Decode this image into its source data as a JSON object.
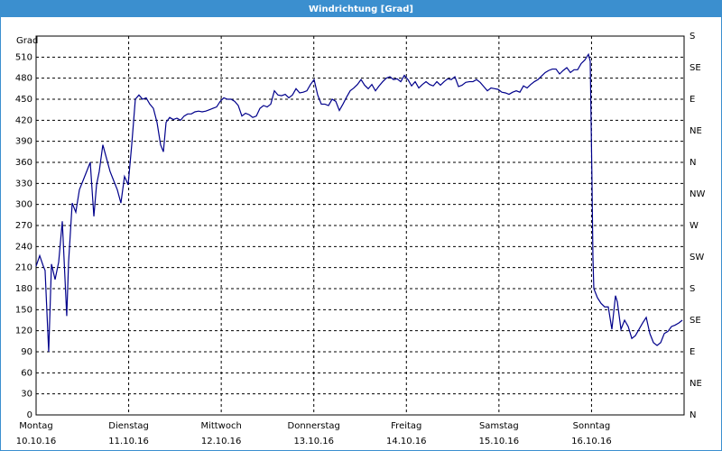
{
  "chart_data": {
    "type": "line",
    "title": "Windrichtung [Grad]",
    "ylabel": "Grad",
    "x": [
      0,
      0.039,
      0.078,
      0.097,
      0.136,
      0.166,
      0.205,
      0.244,
      0.283,
      0.331,
      0.351,
      0.39,
      0.429,
      0.468,
      0.507,
      0.546,
      0.585,
      0.624,
      0.653,
      0.682,
      0.721,
      0.76,
      0.799,
      0.838,
      0.877,
      0.916,
      0.955,
      0.994,
      1.033,
      1.072,
      1.111,
      1.15,
      1.189,
      1.228,
      1.267,
      1.306,
      1.345,
      1.375,
      1.404,
      1.443,
      1.482,
      1.521,
      1.56,
      1.599,
      1.638,
      1.677,
      1.716,
      1.755,
      1.794,
      1.833,
      1.872,
      1.911,
      1.95,
      1.989,
      2.028,
      2.067,
      2.106,
      2.145,
      2.184,
      2.223,
      2.262,
      2.301,
      2.34,
      2.379,
      2.418,
      2.457,
      2.496,
      2.535,
      2.574,
      2.613,
      2.652,
      2.691,
      2.73,
      2.769,
      2.808,
      2.847,
      2.886,
      2.925,
      2.964,
      3.003,
      3.042,
      3.081,
      3.12,
      3.159,
      3.198,
      3.237,
      3.276,
      3.315,
      3.354,
      3.393,
      3.432,
      3.471,
      3.51,
      3.549,
      3.588,
      3.627,
      3.666,
      3.705,
      3.744,
      3.783,
      3.822,
      3.861,
      3.9,
      3.939,
      3.978,
      4.017,
      4.056,
      4.095,
      4.134,
      4.173,
      4.212,
      4.251,
      4.29,
      4.329,
      4.368,
      4.407,
      4.446,
      4.485,
      4.524,
      4.563,
      4.602,
      4.641,
      4.68,
      4.719,
      4.758,
      4.797,
      4.836,
      4.875,
      4.914,
      4.953,
      4.992,
      5.031,
      5.07,
      5.109,
      5.148,
      5.187,
      5.226,
      5.265,
      5.304,
      5.343,
      5.382,
      5.421,
      5.46,
      5.499,
      5.538,
      5.577,
      5.616,
      5.655,
      5.694,
      5.733,
      5.772,
      5.811,
      5.85,
      5.889,
      5.928,
      5.967,
      5.986,
      6.005,
      6.015,
      6.025,
      6.064,
      6.103,
      6.142,
      6.181,
      6.22,
      6.259,
      6.279,
      6.318,
      6.357,
      6.396,
      6.435,
      6.474,
      6.513,
      6.552,
      6.591,
      6.63,
      6.669,
      6.708,
      6.747,
      6.786,
      6.825,
      6.864,
      6.903,
      6.942,
      6.981
    ],
    "series": [
      {
        "color": "#00008b",
        "values": [
          212,
          227,
          212,
          206,
          90,
          215,
          193,
          218,
          276,
          141,
          218,
          302,
          289,
          321,
          334,
          347,
          360,
          283,
          328,
          347,
          385,
          366,
          347,
          334,
          321,
          302,
          340,
          328,
          385,
          450,
          456,
          450,
          452,
          443,
          437,
          417,
          385,
          375,
          417,
          424,
          421,
          423,
          420,
          426,
          429,
          429,
          432,
          433,
          432,
          433,
          435,
          437,
          439,
          447,
          452,
          450,
          450,
          447,
          441,
          426,
          430,
          428,
          424,
          426,
          437,
          441,
          439,
          443,
          462,
          456,
          455,
          457,
          452,
          456,
          465,
          459,
          460,
          462,
          471,
          478,
          456,
          443,
          443,
          441,
          450,
          447,
          434,
          443,
          453,
          462,
          466,
          471,
          478,
          470,
          465,
          471,
          462,
          469,
          475,
          480,
          482,
          478,
          479,
          475,
          484,
          478,
          469,
          475,
          466,
          471,
          475,
          471,
          469,
          475,
          470,
          475,
          479,
          478,
          482,
          468,
          470,
          474,
          475,
          475,
          478,
          474,
          468,
          462,
          466,
          465,
          464,
          460,
          459,
          457,
          460,
          462,
          460,
          469,
          466,
          471,
          475,
          478,
          483,
          488,
          491,
          493,
          493,
          486,
          491,
          495,
          488,
          492,
          492,
          501,
          506,
          514,
          504,
          334,
          225,
          180,
          167,
          159,
          154,
          154,
          122,
          170,
          161,
          122,
          135,
          126,
          109,
          113,
          122,
          131,
          139,
          116,
          103,
          99,
          103,
          116,
          119,
          126,
          128,
          131,
          135
        ]
      }
    ],
    "xlim": [
      0,
      7
    ],
    "xticks": [
      {
        "value": 0,
        "label": "Montag"
      },
      {
        "value": 1,
        "label": "Dienstag"
      },
      {
        "value": 2,
        "label": "Mittwoch"
      },
      {
        "value": 3,
        "label": "Donnerstag"
      },
      {
        "value": 4,
        "label": "Freitag"
      },
      {
        "value": 5,
        "label": "Samstag"
      },
      {
        "value": 6,
        "label": "Sonntag"
      }
    ],
    "xtick_dates": [
      "10.10.16",
      "11.10.16",
      "12.10.16",
      "13.10.16",
      "14.10.16",
      "15.10.16",
      "16.10.16"
    ],
    "ylim": [
      0,
      540
    ],
    "yticks": [
      0,
      30,
      60,
      90,
      120,
      150,
      180,
      210,
      240,
      270,
      300,
      330,
      360,
      390,
      420,
      450,
      480,
      510
    ],
    "y2lim": [
      0,
      540
    ],
    "y2ticks": [
      {
        "value": 0,
        "label": "N"
      },
      {
        "value": 45,
        "label": "NE"
      },
      {
        "value": 90,
        "label": "E"
      },
      {
        "value": 135,
        "label": "SE"
      },
      {
        "value": 180,
        "label": "S"
      },
      {
        "value": 225,
        "label": "SW"
      },
      {
        "value": 270,
        "label": "W"
      },
      {
        "value": 315,
        "label": "NW"
      },
      {
        "value": 360,
        "label": "N"
      },
      {
        "value": 405,
        "label": "NE"
      },
      {
        "value": 450,
        "label": "E"
      },
      {
        "value": 495,
        "label": "SE"
      },
      {
        "value": 540,
        "label": "S"
      }
    ],
    "grid": true
  }
}
